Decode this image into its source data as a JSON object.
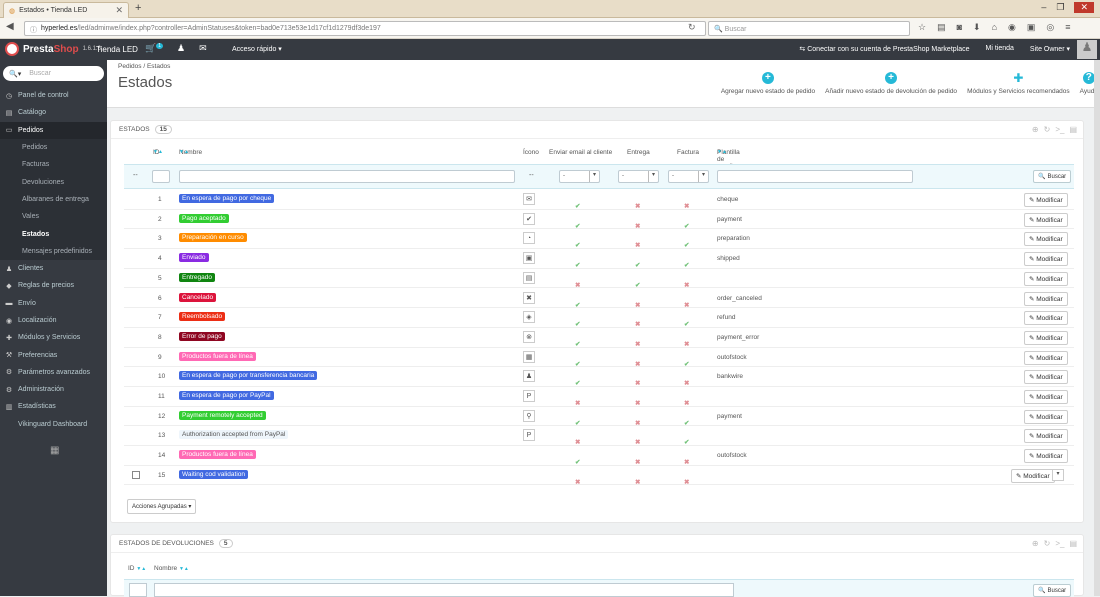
{
  "browser": {
    "tab_title": "Estados • Tienda LED",
    "url_host": "hyperled.es",
    "url_path": "/led/adminwe/index.php?controller=AdminStatuses&token=bad0e713e53e1d17cf1d1279df3de197",
    "search_placeholder": "Buscar"
  },
  "topbar": {
    "logo_a": "Presta",
    "logo_b": "Shop",
    "version": "1.6.1.6",
    "shop_name": "Tienda LED",
    "quick_access": "Acceso rápido ▾",
    "marketplace": "Conectar con su cuenta de PrestaShop Marketplace",
    "my_shop": "Mi tienda",
    "user": "Site Owner ▾",
    "notifications": "1"
  },
  "sidebar": {
    "search_placeholder": "Buscar",
    "items": [
      {
        "label": "Panel de control",
        "icon": "dashboard-icon"
      },
      {
        "label": "Catálogo",
        "icon": "catalog-icon"
      },
      {
        "label": "Pedidos",
        "icon": "orders-icon"
      },
      {
        "label": "Pedidos"
      },
      {
        "label": "Facturas"
      },
      {
        "label": "Devoluciones"
      },
      {
        "label": "Albaranes de entrega"
      },
      {
        "label": "Vales"
      },
      {
        "label": "Estados"
      },
      {
        "label": "Mensajes predefinidos"
      },
      {
        "label": "Clientes",
        "icon": "users-icon"
      },
      {
        "label": "Reglas de precios",
        "icon": "tag-icon"
      },
      {
        "label": "Envío",
        "icon": "truck-icon"
      },
      {
        "label": "Localización",
        "icon": "globe-icon"
      },
      {
        "label": "Módulos y Servicios",
        "icon": "puzzle-icon"
      },
      {
        "label": "Preferencias",
        "icon": "wrench-icon"
      },
      {
        "label": "Parámetros avanzados",
        "icon": "cogs-icon"
      },
      {
        "label": "Administración",
        "icon": "gear-icon"
      },
      {
        "label": "Estadísticas",
        "icon": "chart-icon"
      },
      {
        "label": "Vikinguard Dashboard"
      }
    ]
  },
  "header": {
    "breadcrumb_1": "Pedidos",
    "breadcrumb_sep": "/",
    "breadcrumb_2": "Estados",
    "title": "Estados",
    "toolbar": [
      {
        "label": "Agregar nuevo estado de pedido"
      },
      {
        "label": "Añadir nuevo estado de devolución de pedido"
      },
      {
        "label": "Módulos y Servicios recomendados"
      },
      {
        "label": "Ayuda"
      }
    ]
  },
  "panel": {
    "title": "Estados",
    "count": "15",
    "columns": {
      "id": "ID",
      "name": "Nombre",
      "icon": "Ícono",
      "send_email": "Enviar email al cliente",
      "delivery": "Entrega",
      "invoice": "Factura",
      "template": "Plantilla de email"
    },
    "filter_dash": "--",
    "filter_select": "-",
    "search_button": "Buscar",
    "modify": "Modificar",
    "bulk": "Acciones Agrupadas ▾",
    "rows": [
      {
        "id": "1",
        "name": "En espera de pago por cheque",
        "color": "#4169e1",
        "email": true,
        "delivery": false,
        "invoice": false,
        "template": "cheque",
        "icon": "✉"
      },
      {
        "id": "2",
        "name": "Pago aceptado",
        "color": "#32cd32",
        "email": true,
        "delivery": false,
        "invoice": true,
        "template": "payment",
        "icon": "✔"
      },
      {
        "id": "3",
        "name": "Preparación en curso",
        "color": "#ff8c00",
        "email": true,
        "delivery": false,
        "invoice": true,
        "template": "preparation",
        "icon": "◔"
      },
      {
        "id": "4",
        "name": "Enviado",
        "color": "#8a2be2",
        "email": true,
        "delivery": true,
        "invoice": true,
        "template": "shipped",
        "icon": "▣"
      },
      {
        "id": "5",
        "name": "Entregado",
        "color": "#108510",
        "email": false,
        "delivery": true,
        "invoice": false,
        "template": "",
        "icon": "▤"
      },
      {
        "id": "6",
        "name": "Cancelado",
        "color": "#dc143c",
        "email": true,
        "delivery": false,
        "invoice": false,
        "template": "order_canceled",
        "icon": "✖"
      },
      {
        "id": "7",
        "name": "Reembolsado",
        "color": "#ec2e15",
        "email": true,
        "delivery": false,
        "invoice": true,
        "template": "refund",
        "icon": "◈"
      },
      {
        "id": "8",
        "name": "Error de pago",
        "color": "#8f0621",
        "email": true,
        "delivery": false,
        "invoice": false,
        "template": "payment_error",
        "icon": "⊗"
      },
      {
        "id": "9",
        "name": "Productos fuera de línea",
        "color": "#ff69b4",
        "email": true,
        "delivery": false,
        "invoice": true,
        "template": "outofstock",
        "icon": "▦"
      },
      {
        "id": "10",
        "name": "En espera de pago por transferencia bancaria",
        "color": "#4169e1",
        "email": true,
        "delivery": false,
        "invoice": false,
        "template": "bankwire",
        "icon": "♟"
      },
      {
        "id": "11",
        "name": "En espera de pago por PayPal",
        "color": "#4169e1",
        "email": false,
        "delivery": false,
        "invoice": false,
        "template": "",
        "icon": "P"
      },
      {
        "id": "12",
        "name": "Payment remotely accepted",
        "color": "#32cd32",
        "email": true,
        "delivery": false,
        "invoice": true,
        "template": "payment",
        "icon": "⚲"
      },
      {
        "id": "13",
        "name": "Authorization accepted from PayPal",
        "color": "#eef5fb",
        "email": false,
        "delivery": false,
        "invoice": true,
        "template": "",
        "icon": "P"
      },
      {
        "id": "14",
        "name": "Productos fuera de línea",
        "color": "#ff69b4",
        "email": true,
        "delivery": false,
        "invoice": false,
        "template": "outofstock",
        "icon": ""
      },
      {
        "id": "15",
        "name": "Waiting cod validation",
        "color": "#4169e1",
        "email": false,
        "delivery": false,
        "invoice": false,
        "template": "",
        "icon": ""
      }
    ]
  },
  "panel2": {
    "title": "Estados de devoluciones",
    "count": "5",
    "col_id": "ID",
    "col_name": "Nombre",
    "search_button": "Buscar"
  }
}
